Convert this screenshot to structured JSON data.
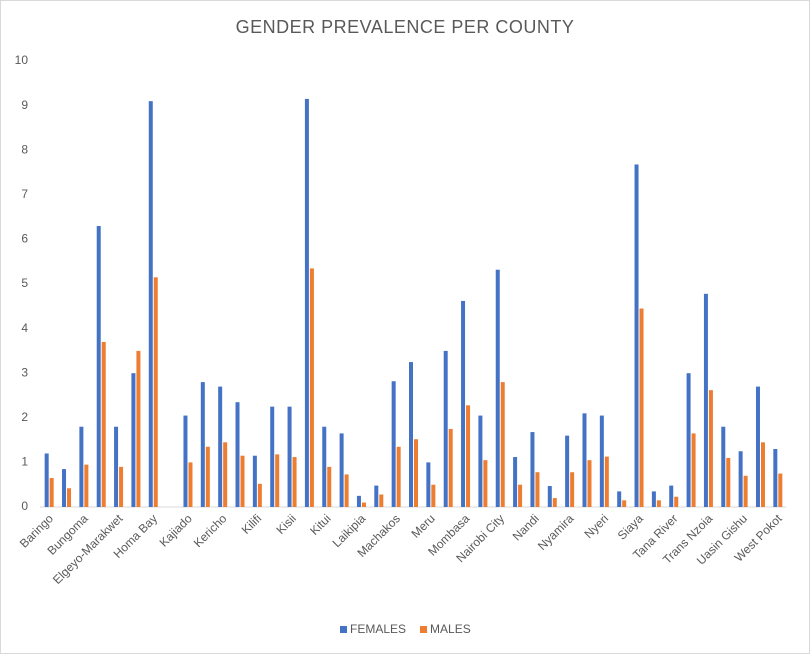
{
  "chart_data": {
    "type": "bar",
    "title": "GENDER PREVALENCE PER COUNTY",
    "categories": [
      "Baringo",
      null,
      "Bungoma",
      null,
      "Elgeyo-Marakwet",
      null,
      "Homa Bay",
      null,
      "Kajiado",
      null,
      "Kericho",
      null,
      "Kilifi",
      null,
      "Kisii",
      null,
      "Kitui",
      null,
      "Laikipia",
      null,
      "Machakos",
      null,
      "Meru",
      null,
      "Mombasa",
      null,
      "Nairobi City",
      null,
      "Nandi",
      null,
      "Nyamira",
      null,
      "Nyeri",
      null,
      "Siaya",
      null,
      "Tana River",
      null,
      "Trans Nzoia",
      null,
      "Uasin Gishu",
      null,
      "West Pokot"
    ],
    "series": [
      {
        "name": "FEMALES",
        "color": "#4472c4",
        "values": [
          1.2,
          0.85,
          1.8,
          6.3,
          1.8,
          3.0,
          9.1,
          null,
          2.05,
          2.8,
          2.7,
          2.35,
          1.15,
          2.25,
          2.25,
          9.15,
          1.8,
          1.65,
          0.25,
          0.48,
          2.82,
          3.25,
          1.0,
          3.5,
          4.62,
          2.05,
          5.32,
          1.12,
          1.68,
          0.47,
          1.6,
          2.1,
          2.05,
          0.35,
          7.68,
          0.35,
          0.48,
          3.0,
          4.78,
          1.8,
          1.25,
          2.7,
          1.3
        ]
      },
      {
        "name": "MALES",
        "color": "#ed7d31",
        "values": [
          0.65,
          0.42,
          0.95,
          3.7,
          0.9,
          3.5,
          5.15,
          null,
          1.0,
          1.35,
          1.45,
          1.15,
          0.52,
          1.18,
          1.12,
          5.35,
          0.9,
          0.73,
          0.1,
          0.28,
          1.35,
          1.52,
          0.5,
          1.75,
          2.28,
          1.05,
          2.8,
          0.5,
          0.78,
          0.2,
          0.78,
          1.05,
          1.13,
          0.15,
          4.45,
          0.15,
          0.23,
          1.65,
          2.62,
          1.1,
          0.7,
          1.45,
          0.75
        ]
      }
    ],
    "ylim": [
      0,
      10
    ],
    "yticks": [
      0,
      1,
      2,
      3,
      4,
      5,
      6,
      7,
      8,
      9,
      10
    ],
    "grid": false,
    "legend": "bottom"
  }
}
